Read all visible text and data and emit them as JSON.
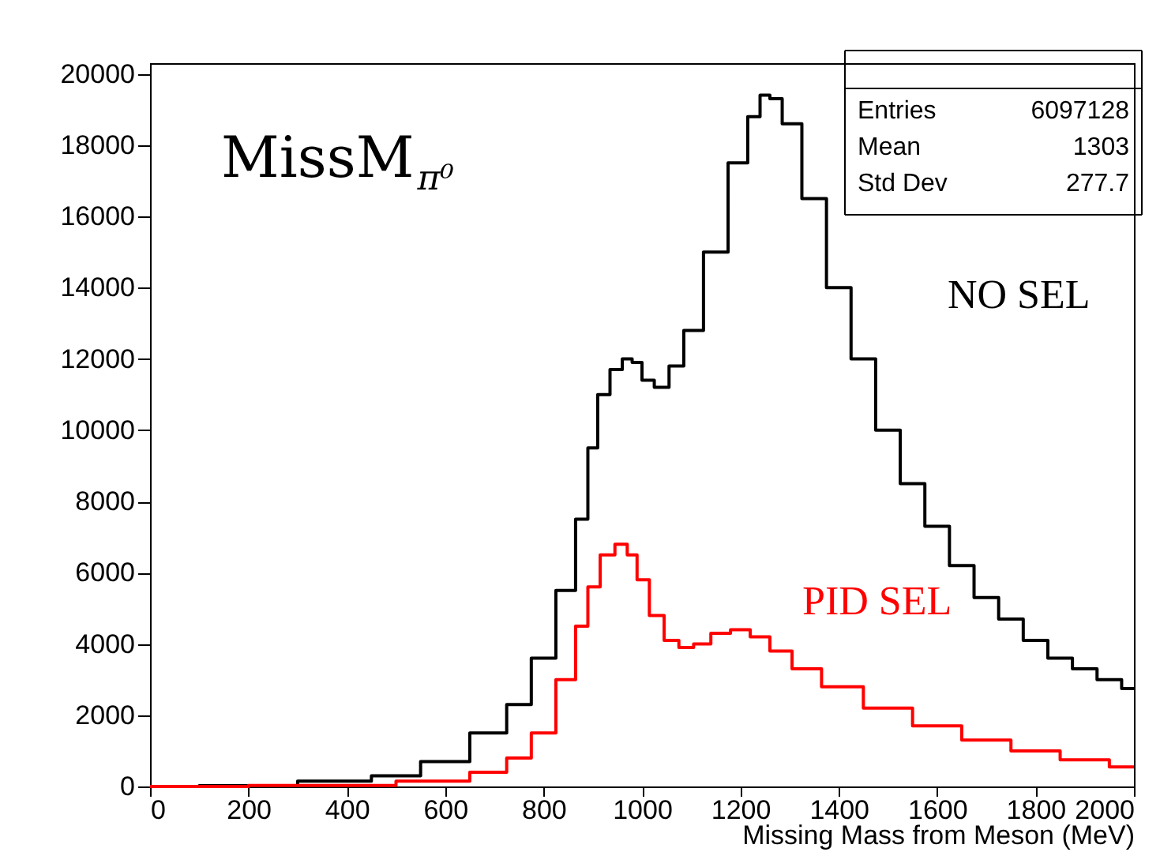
{
  "chart_data": {
    "type": "step",
    "title": "MissM$_{π⁰}$",
    "xlabel": "Missing Mass from Meson (MeV)",
    "xlim": [
      0,
      2000
    ],
    "xticks": [
      0,
      200,
      400,
      600,
      800,
      1000,
      1200,
      1400,
      1600,
      1800,
      2000
    ],
    "ylim": [
      0,
      20300
    ],
    "yticks": [
      0,
      2000,
      4000,
      6000,
      8000,
      10000,
      12000,
      14000,
      16000,
      18000,
      20000
    ],
    "grid": false,
    "legend": false,
    "annotations": [
      "Entries",
      "6097128",
      "Mean",
      "1303",
      "Std Dev",
      "277.7"
    ],
    "series": [
      {
        "name": "NO SEL",
        "color": "#000000",
        "x": [
          0,
          200,
          400,
          500,
          600,
          700,
          750,
          800,
          850,
          880,
          900,
          920,
          950,
          970,
          990,
          1010,
          1040,
          1070,
          1100,
          1150,
          1200,
          1230,
          1250,
          1270,
          1300,
          1350,
          1400,
          1450,
          1500,
          1550,
          1600,
          1650,
          1700,
          1750,
          1800,
          1850,
          1900,
          1950,
          2000
        ],
        "values": [
          0,
          20,
          150,
          300,
          700,
          1500,
          2300,
          3600,
          5500,
          7500,
          9500,
          11000,
          11700,
          12000,
          11900,
          11400,
          11200,
          11800,
          12800,
          15000,
          17500,
          18800,
          19400,
          19300,
          18600,
          16500,
          14000,
          12000,
          10000,
          8500,
          7300,
          6200,
          5300,
          4700,
          4100,
          3600,
          3300,
          3000,
          2750
        ]
      },
      {
        "name": "PID SEL",
        "color": "#ff0000",
        "x": [
          0,
          400,
          600,
          700,
          750,
          800,
          850,
          880,
          900,
          930,
          960,
          980,
          1000,
          1030,
          1060,
          1090,
          1120,
          1160,
          1200,
          1240,
          1280,
          1330,
          1400,
          1500,
          1600,
          1700,
          1800,
          1900,
          2000
        ],
        "values": [
          0,
          30,
          150,
          400,
          800,
          1500,
          3000,
          4500,
          5600,
          6500,
          6800,
          6500,
          5800,
          4800,
          4100,
          3900,
          4000,
          4300,
          4400,
          4200,
          3800,
          3300,
          2800,
          2200,
          1700,
          1300,
          1000,
          750,
          550
        ]
      }
    ]
  }
}
